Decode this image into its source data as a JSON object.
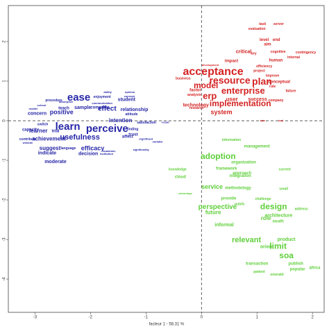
{
  "chart_data": {
    "type": "scatter",
    "x_label": "facteur 1 - 58.31 %",
    "xlim": [
      -3.48,
      2.21
    ],
    "ylim": [
      -4.84,
      2.91
    ],
    "xticks": [
      -3,
      -2,
      -1,
      0,
      1,
      2
    ],
    "yticks": [
      -4,
      -3,
      -2,
      -1,
      0,
      1,
      2
    ],
    "series": [
      {
        "color": "#2626a8",
        "labels": [
          "ease",
          "learn",
          "perceive",
          "usefulness",
          "effect",
          "intention",
          "positive",
          "relationship",
          "student",
          "efficacy",
          "decision",
          "achievement",
          "learner",
          "trial",
          "suggest",
          "indicate",
          "moderate",
          "capacity",
          "contribute",
          "concern",
          "sample",
          "teach",
          "computer",
          "finding",
          "trust",
          "affect",
          "satisfaction",
          "result",
          "attitude",
          "enjoyment",
          "ability",
          "opinion",
          "concept",
          "procedure",
          "significantly",
          "significant",
          "variable",
          "absorptive",
          "communication",
          "institution",
          "academic",
          "language",
          "mobile",
          "school",
          "switch",
          "website"
        ],
        "x": [
          -2.21,
          -2.41,
          -1.7,
          -2.19,
          -1.7,
          -1.46,
          -2.52,
          -1.21,
          -1.35,
          -1.96,
          -2.04,
          -2.75,
          -2.94,
          -2.63,
          -2.73,
          -2.78,
          -2.63,
          -3.08,
          -3.13,
          -2.96,
          -2.14,
          -2.48,
          -1.83,
          -1.24,
          -1.23,
          -1.33,
          -0.99,
          -0.65,
          -1.26,
          -1.79,
          -1.69,
          -1.29,
          -1.3,
          -2.66,
          -1.09,
          -1.0,
          -0.79,
          -2.44,
          -1.79,
          -1.71,
          -1.66,
          -2.4,
          -3.03,
          -2.88,
          -2.86,
          -3.13
        ],
        "y": [
          0.58,
          -0.16,
          -0.21,
          -0.42,
          0.3,
          0.0,
          0.21,
          0.28,
          0.53,
          -0.7,
          -0.84,
          -0.46,
          -0.26,
          -0.26,
          -0.7,
          -0.82,
          -1.04,
          -0.23,
          -0.47,
          0.18,
          0.33,
          0.32,
          0.33,
          -0.21,
          -0.35,
          -0.4,
          -0.05,
          -0.04,
          0.16,
          0.6,
          0.72,
          0.72,
          0.61,
          0.51,
          -0.74,
          -0.46,
          -0.53,
          0.47,
          0.44,
          -0.84,
          -0.77,
          -0.7,
          0.3,
          0.39,
          -0.09,
          -0.56
        ]
      },
      {
        "color": "#d42222",
        "labels": [
          "acceptance",
          "resource",
          "model",
          "plan",
          "erp",
          "enterprise",
          "implementation",
          "system",
          "user",
          "technology",
          "success",
          "factor",
          "human",
          "company",
          "conceptual",
          "improve",
          "project",
          "critical",
          "key",
          "impact",
          "aim",
          "task",
          "server",
          "evaluation",
          "level",
          "end",
          "cognitive",
          "contingency",
          "internal",
          "efficiency",
          "business",
          "analysis",
          "research",
          "role",
          "failure",
          "development",
          "size",
          "tool"
        ],
        "x": [
          0.21,
          0.51,
          0.08,
          1.09,
          0.15,
          0.75,
          0.7,
          0.36,
          0.55,
          -0.1,
          1.01,
          -0.11,
          1.34,
          1.34,
          1.4,
          1.28,
          1.04,
          0.76,
          0.94,
          0.54,
          1.19,
          1.1,
          1.39,
          1.0,
          1.13,
          1.35,
          1.38,
          1.88,
          1.66,
          1.13,
          -0.33,
          -0.13,
          -0.09,
          1.28,
          1.61,
          0.16,
          1.1,
          1.43
        ],
        "y": [
          1.23,
          1.0,
          0.88,
          0.98,
          0.61,
          0.74,
          0.42,
          0.21,
          0.54,
          0.39,
          0.54,
          0.77,
          1.53,
          0.51,
          0.98,
          1.14,
          1.26,
          1.74,
          1.7,
          1.51,
          1.93,
          2.44,
          2.44,
          2.32,
          2.04,
          2.04,
          1.74,
          1.72,
          1.6,
          1.37,
          1.07,
          0.65,
          0.32,
          0.86,
          0.75,
          1.4,
          0.0,
          0.0
        ]
      },
      {
        "color": "#5fcf3a",
        "labels": [
          "adoption",
          "perspective",
          "design",
          "relevant",
          "limit",
          "soa",
          "service",
          "role",
          "future",
          "architecture",
          "south",
          "product",
          "orient",
          "publish",
          "transaction",
          "popular",
          "africa",
          "informal",
          "approach",
          "organization",
          "management",
          "information",
          "cloud",
          "knowledge",
          "framework",
          "methodology",
          "integration",
          "provide",
          "public",
          "challenge",
          "address",
          "small",
          "current",
          "advantage",
          "patient",
          "emerald"
        ],
        "x": [
          0.3,
          0.29,
          1.3,
          0.81,
          1.38,
          1.53,
          0.19,
          1.16,
          0.21,
          1.39,
          1.38,
          1.53,
          1.18,
          1.7,
          1.0,
          1.73,
          2.04,
          0.41,
          0.73,
          0.76,
          1.0,
          0.54,
          -0.38,
          -0.43,
          0.45,
          0.66,
          0.7,
          0.49,
          0.69,
          1.11,
          1.8,
          1.48,
          1.5,
          -0.29,
          1.04,
          1.36
        ],
        "y": [
          -0.91,
          -2.18,
          -2.18,
          -3.02,
          -3.18,
          -3.42,
          -1.68,
          -2.47,
          -2.32,
          -2.4,
          -2.54,
          -3.0,
          -3.19,
          -3.61,
          -3.61,
          -3.75,
          -3.72,
          -2.63,
          -1.32,
          -1.05,
          -0.65,
          -0.49,
          -1.42,
          -1.23,
          -1.21,
          -1.7,
          -1.39,
          -1.96,
          -2.11,
          -1.98,
          -2.23,
          -1.72,
          -1.23,
          -1.84,
          -3.82,
          -3.89
        ]
      }
    ]
  }
}
